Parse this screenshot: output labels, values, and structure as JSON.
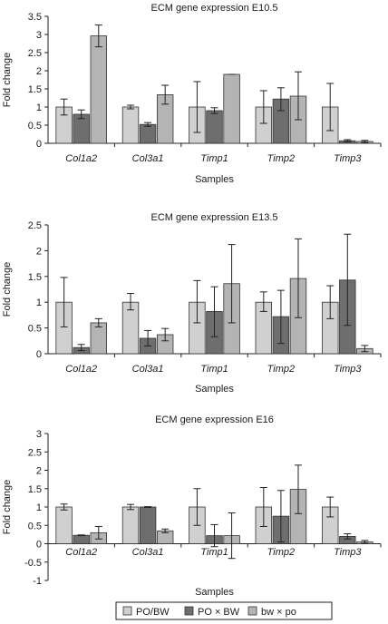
{
  "series_colors": [
    "#d0d0d0",
    "#6e6e6e",
    "#b4b4b4"
  ],
  "legend": [
    {
      "label": "PO/BW"
    },
    {
      "label": "PO × BW"
    },
    {
      "label": "bw × po"
    }
  ],
  "chart_data": [
    {
      "type": "bar",
      "title": "ECM gene expression E10.5",
      "xlabel": "Samples",
      "ylabel": "Fold change",
      "categories": [
        "Col1a2",
        "Col3a1",
        "Timp1",
        "Timp2",
        "Timp3"
      ],
      "ylim": [
        0,
        3.5
      ],
      "yticks": [
        0,
        0.5,
        1,
        1.5,
        2,
        2.5,
        3,
        3.5
      ],
      "series": [
        {
          "name": "PO/BW",
          "values": [
            1.0,
            1.0,
            1.0,
            1.0,
            1.0
          ],
          "err_low": [
            0.78,
            0.95,
            0.3,
            0.55,
            0.35
          ],
          "err_high": [
            1.22,
            1.05,
            1.7,
            1.45,
            1.65
          ]
        },
        {
          "name": "PO × BW",
          "values": [
            0.8,
            0.52,
            0.9,
            1.22,
            0.07
          ],
          "err_low": [
            0.68,
            0.47,
            0.82,
            0.9,
            0.04
          ],
          "err_high": [
            0.92,
            0.57,
            0.98,
            1.53,
            0.1
          ]
        },
        {
          "name": "bw × po",
          "values": [
            2.96,
            1.34,
            1.9,
            1.3,
            0.05
          ],
          "err_low": [
            2.66,
            1.08,
            1.9,
            0.65,
            0.02
          ],
          "err_high": [
            3.26,
            1.6,
            1.9,
            1.97,
            0.08
          ]
        }
      ]
    },
    {
      "type": "bar",
      "title": "ECM gene expression E13.5",
      "xlabel": "Samples",
      "ylabel": "Fold change",
      "categories": [
        "Col1a2",
        "Col3a1",
        "Timp1",
        "Timp2",
        "Timp3"
      ],
      "ylim": [
        0,
        2.5
      ],
      "yticks": [
        0,
        0.5,
        1,
        1.5,
        2,
        2.5
      ],
      "series": [
        {
          "name": "PO/BW",
          "values": [
            1.0,
            1.0,
            1.0,
            1.0,
            1.0
          ],
          "err_low": [
            0.52,
            0.85,
            0.6,
            0.82,
            0.68
          ],
          "err_high": [
            1.48,
            1.17,
            1.42,
            1.2,
            1.32
          ]
        },
        {
          "name": "PO × BW",
          "values": [
            0.12,
            0.3,
            0.82,
            0.72,
            1.43
          ],
          "err_low": [
            0.06,
            0.15,
            0.33,
            0.2,
            0.55
          ],
          "err_high": [
            0.18,
            0.45,
            1.3,
            1.23,
            2.32
          ]
        },
        {
          "name": "bw × po",
          "values": [
            0.6,
            0.37,
            1.36,
            1.46,
            0.1
          ],
          "err_low": [
            0.52,
            0.25,
            0.6,
            0.7,
            0.04
          ],
          "err_high": [
            0.68,
            0.49,
            2.12,
            2.23,
            0.16
          ]
        }
      ]
    },
    {
      "type": "bar",
      "title": "ECM gene expression E16",
      "xlabel": "Samples",
      "ylabel": "Fold change",
      "categories": [
        "Col1a2",
        "Col3a1",
        "Timp1",
        "Timp2",
        "Timp3"
      ],
      "ylim": [
        -1,
        3
      ],
      "yticks": [
        -1,
        -0.5,
        0,
        0.5,
        1,
        1.5,
        2,
        2.5,
        3
      ],
      "series": [
        {
          "name": "PO/BW",
          "values": [
            1.0,
            1.0,
            1.0,
            1.0,
            1.0
          ],
          "err_low": [
            0.92,
            0.93,
            0.5,
            0.47,
            0.73
          ],
          "err_high": [
            1.08,
            1.07,
            1.5,
            1.53,
            1.27
          ]
        },
        {
          "name": "PO × BW",
          "values": [
            0.23,
            1.0,
            0.22,
            0.75,
            0.2
          ],
          "err_low": [
            0.22,
            0.99,
            -0.08,
            0.05,
            0.13
          ],
          "err_high": [
            0.24,
            1.01,
            0.52,
            1.45,
            0.27
          ]
        },
        {
          "name": "bw × po",
          "values": [
            0.3,
            0.35,
            0.22,
            1.48,
            0.05
          ],
          "err_low": [
            0.13,
            0.3,
            -0.4,
            0.82,
            0.01
          ],
          "err_high": [
            0.47,
            0.4,
            0.84,
            2.14,
            0.09
          ]
        }
      ]
    }
  ]
}
